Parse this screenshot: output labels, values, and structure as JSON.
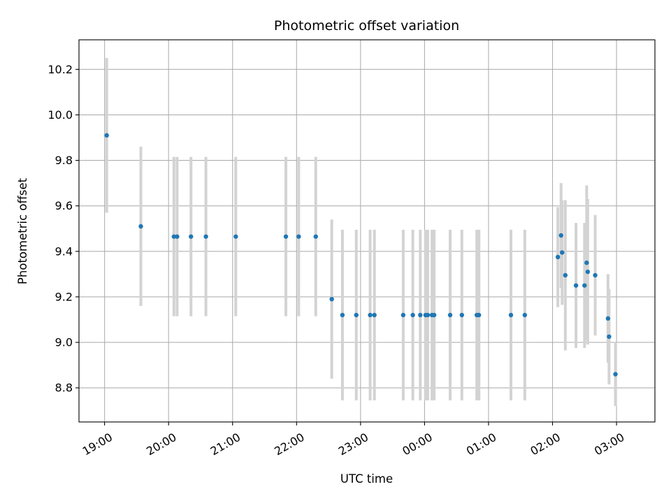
{
  "chart_data": {
    "type": "scatter",
    "title": "Photometric offset variation",
    "xlabel": "UTC time",
    "ylabel": "Photometric offset",
    "grid": true,
    "ylim": [
      8.65,
      10.33
    ],
    "xlim": [
      "18:35",
      "02:60+"
    ],
    "x_range_hours": [
      18.6,
      27.6
    ],
    "x_ticks": [
      {
        "label": "19:00",
        "hour": 19
      },
      {
        "label": "20:00",
        "hour": 20
      },
      {
        "label": "21:00",
        "hour": 21
      },
      {
        "label": "22:00",
        "hour": 22
      },
      {
        "label": "23:00",
        "hour": 23
      },
      {
        "label": "00:00",
        "hour": 24
      },
      {
        "label": "01:00",
        "hour": 25
      },
      {
        "label": "02:00",
        "hour": 26
      },
      {
        "label": "03:00",
        "hour": 27
      }
    ],
    "y_ticks": [
      8.8,
      9.0,
      9.2,
      9.4,
      9.6,
      9.8,
      10.0,
      10.2
    ],
    "y_tick_labels": [
      "8.8",
      "9.0",
      "9.2",
      "9.4",
      "9.6",
      "9.8",
      "10.0",
      "10.2"
    ],
    "colors": {
      "marker": "#1f77b4",
      "errorbar": "#d3d3d3",
      "grid": "#b0b0b0"
    },
    "points": [
      {
        "t": "19:02",
        "y": 9.91,
        "err": 0.34
      },
      {
        "t": "19:34",
        "y": 9.51,
        "err": 0.35
      },
      {
        "t": "20:05",
        "y": 9.465,
        "err": 0.35
      },
      {
        "t": "20:08",
        "y": 9.465,
        "err": 0.35
      },
      {
        "t": "20:21",
        "y": 9.465,
        "err": 0.35
      },
      {
        "t": "20:35",
        "y": 9.465,
        "err": 0.35
      },
      {
        "t": "21:03",
        "y": 9.465,
        "err": 0.35
      },
      {
        "t": "21:50",
        "y": 9.465,
        "err": 0.35
      },
      {
        "t": "22:02",
        "y": 9.465,
        "err": 0.35
      },
      {
        "t": "22:18",
        "y": 9.465,
        "err": 0.35
      },
      {
        "t": "22:33",
        "y": 9.19,
        "err": 0.35
      },
      {
        "t": "22:43",
        "y": 9.12,
        "err": 0.375
      },
      {
        "t": "22:56",
        "y": 9.12,
        "err": 0.375
      },
      {
        "t": "23:09",
        "y": 9.12,
        "err": 0.375
      },
      {
        "t": "23:13",
        "y": 9.12,
        "err": 0.375
      },
      {
        "t": "23:40",
        "y": 9.12,
        "err": 0.375
      },
      {
        "t": "23:49",
        "y": 9.12,
        "err": 0.375
      },
      {
        "t": "23:56",
        "y": 9.12,
        "err": 0.375
      },
      {
        "t": "00:01",
        "y": 9.12,
        "err": 0.375
      },
      {
        "t": "00:03",
        "y": 9.12,
        "err": 0.375
      },
      {
        "t": "00:07",
        "y": 9.12,
        "err": 0.375
      },
      {
        "t": "00:09",
        "y": 9.12,
        "err": 0.375
      },
      {
        "t": "00:24",
        "y": 9.12,
        "err": 0.375
      },
      {
        "t": "00:35",
        "y": 9.12,
        "err": 0.375
      },
      {
        "t": "00:49",
        "y": 9.12,
        "err": 0.375
      },
      {
        "t": "00:51",
        "y": 9.12,
        "err": 0.375
      },
      {
        "t": "01:21",
        "y": 9.12,
        "err": 0.375
      },
      {
        "t": "01:34",
        "y": 9.12,
        "err": 0.375
      },
      {
        "t": "02:05",
        "y": 9.375,
        "err": 0.22
      },
      {
        "t": "02:08",
        "y": 9.47,
        "err": 0.23
      },
      {
        "t": "02:09",
        "y": 9.395,
        "err": 0.23
      },
      {
        "t": "02:12",
        "y": 9.295,
        "err": 0.33
      },
      {
        "t": "02:22",
        "y": 9.25,
        "err": 0.275
      },
      {
        "t": "02:30",
        "y": 9.25,
        "err": 0.275
      },
      {
        "t": "02:32",
        "y": 9.35,
        "err": 0.34
      },
      {
        "t": "02:33",
        "y": 9.31,
        "err": 0.32
      },
      {
        "t": "02:40",
        "y": 9.295,
        "err": 0.265
      },
      {
        "t": "02:52",
        "y": 9.105,
        "err": 0.195
      },
      {
        "t": "02:53",
        "y": 9.025,
        "err": 0.21
      },
      {
        "t": "02:59",
        "y": 8.86,
        "err": 0.14
      }
    ]
  }
}
